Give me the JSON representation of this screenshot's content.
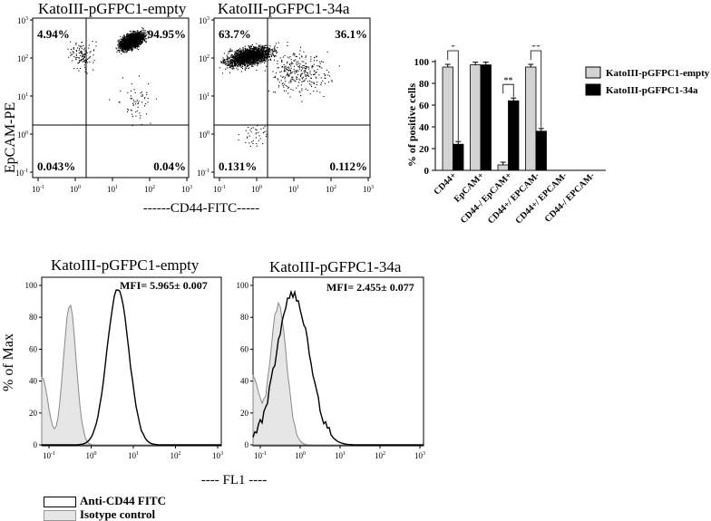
{
  "scatter": {
    "panels": [
      {
        "title": "KatoIII-pGFPC1-empty",
        "q_tl": "4.94%",
        "q_tr": "94.95%",
        "q_bl": "0.043%",
        "q_br": "0.04%"
      },
      {
        "title": "KatoIII-pGFPC1-34a",
        "q_tl": "63.7%",
        "q_tr": "36.1%",
        "q_bl": "0.131%",
        "q_br": "0.112%"
      }
    ],
    "ylabel": "EpCAM-PE",
    "xlabel": "------CD44-FITC-----",
    "tick_exps": [
      "-1",
      "0",
      "1",
      "2",
      "3"
    ],
    "tick_base": "10"
  },
  "hist": {
    "panels": [
      {
        "title": "KatoIII-pGFPC1-empty",
        "mfi": "MFI= 5.965± 0.007"
      },
      {
        "title": "KatoIII-pGFPC1-34a",
        "mfi": "MFI= 2.455± 0.077"
      }
    ],
    "ylabel": "% of Max",
    "xlabel": "---- FL1 ----",
    "y_ticks": [
      "0",
      "20",
      "40",
      "60",
      "80",
      "100"
    ],
    "legend": [
      "Anti-CD44 FITC",
      "Isotype control"
    ]
  },
  "chart_data": [
    {
      "type": "bar",
      "ylabel": "% of positive cells",
      "ylim": [
        0,
        100
      ],
      "y_ticks": [
        "0",
        "20",
        "40",
        "60",
        "80",
        "100"
      ],
      "categories": [
        "CD44+",
        "EpCAM+",
        "CD44-/ EpCAM+",
        "CD44+/ EPCAM-",
        "CD44+/ EPCAM-",
        "CD44-/ EPCAM-"
      ],
      "series": [
        {
          "name": "KatoIII-pGFPC1-empty",
          "values": [
            95,
            97,
            5,
            95,
            0,
            0
          ],
          "color": "#d3d3d3"
        },
        {
          "name": "KatoIII-pGFPC1-34a",
          "values": [
            24,
            97,
            64,
            36,
            0,
            0
          ],
          "color": "#000000"
        }
      ],
      "significance": [
        {
          "category": "CD44+",
          "mark": "*"
        },
        {
          "category": "CD44-/ EpCAM+",
          "mark": "**"
        },
        {
          "category": "CD44+/ EPCAM-",
          "mark": "**"
        }
      ],
      "legend_position": "right"
    }
  ]
}
